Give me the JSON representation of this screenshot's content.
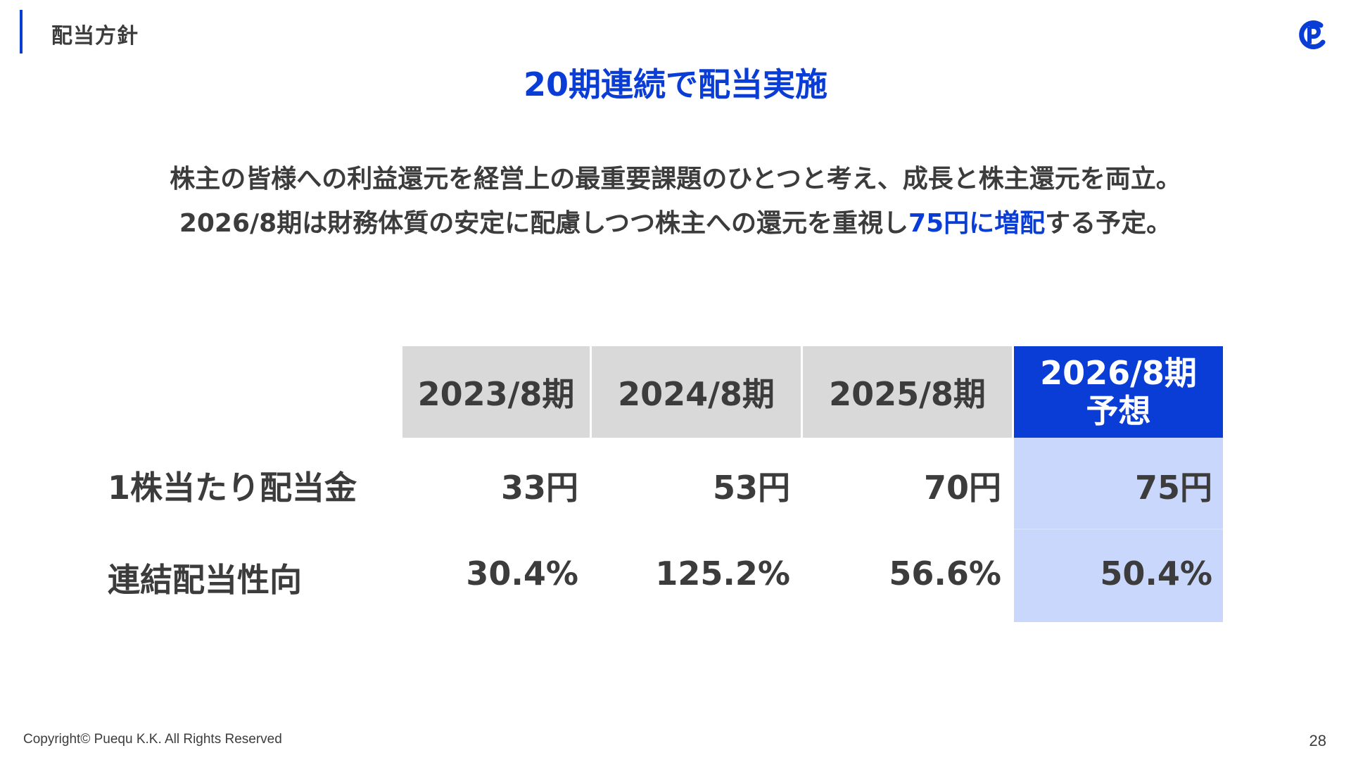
{
  "header": {
    "section_label": "配当方針",
    "logo_icon": "pueqiu-logo-icon"
  },
  "title": "20期連続で配当実施",
  "lead": {
    "line1": "株主の皆様への利益還元を経営上の最重要課題のひとつと考え、成長と株主還元を両立。",
    "line2_before": "2026/8期は財務体質の安定に配慮しつつ株主への還元を重視し",
    "line2_highlight": "75円に増配",
    "line2_after": "する予定。"
  },
  "table": {
    "columns": [
      {
        "label": "2023/8期"
      },
      {
        "label": "2024/8期"
      },
      {
        "label": "2025/8期"
      },
      {
        "label": "2026/8期",
        "sublabel": "予想"
      }
    ],
    "rows": [
      {
        "label": "1株当たり配当金",
        "values": [
          "33円",
          "53円",
          "70円",
          "75円"
        ]
      },
      {
        "label": "連結配当性向",
        "values": [
          "30.4%",
          "125.2%",
          "56.6%",
          "50.4%"
        ]
      }
    ]
  },
  "colors": {
    "accent": "#0a3cd6",
    "header_gray": "#d9d9d9",
    "forecast_fill": "#c8d7fb",
    "text": "#3c3c3c"
  },
  "footer": {
    "copyright": "Copyright© Puequ K.K. All Rights Reserved",
    "page_number": "28"
  }
}
